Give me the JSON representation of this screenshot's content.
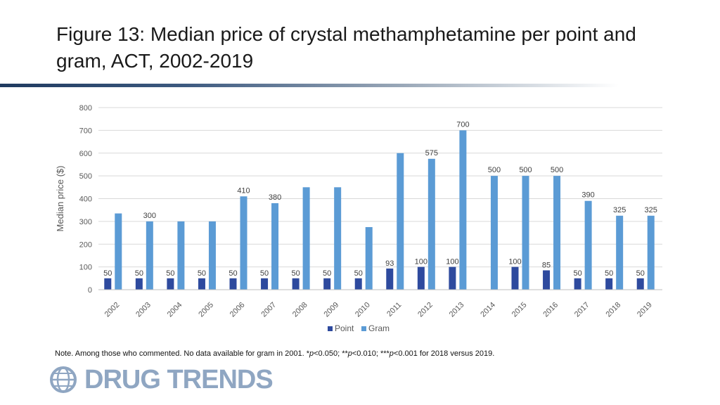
{
  "slide": {
    "title": "Figure 13: Median price of crystal methamphetamine per point and gram, ACT, 2002-2019",
    "note_prefix": "Note. Among those who commented. No data available for gram in 2001. *",
    "note_p1": "p",
    "note_mid1": "<0.050; **",
    "note_p2": "p",
    "note_mid2": "<0.010; ***",
    "note_p3": "p",
    "note_suffix": "<0.001 for 2018 versus 2019.",
    "logo_text": "DRUG TRENDS"
  },
  "chart_data": {
    "type": "bar",
    "title": "",
    "xlabel": "",
    "ylabel": "Median price ($)",
    "ylim": [
      0,
      800
    ],
    "yticks": [
      0,
      100,
      200,
      300,
      400,
      500,
      600,
      700,
      800
    ],
    "categories": [
      "2002",
      "2003",
      "2004",
      "2005",
      "2006",
      "2007",
      "2008",
      "2009",
      "2010",
      "2011",
      "2012",
      "2013",
      "2014",
      "2015",
      "2016",
      "2017",
      "2018",
      "2019"
    ],
    "series": [
      {
        "name": "Point",
        "color": "#2e4a9e",
        "values": [
          50,
          50,
          50,
          50,
          50,
          50,
          50,
          50,
          50,
          93,
          100,
          100,
          null,
          100,
          85,
          50,
          50,
          50
        ],
        "labels": [
          "50",
          "50",
          "50",
          "50",
          "50",
          "50",
          "50",
          "50",
          "50",
          "93",
          "100",
          "100",
          "",
          "100",
          "85",
          "50",
          "50",
          "50"
        ]
      },
      {
        "name": "Gram",
        "color": "#5b9bd5",
        "values": [
          335,
          300,
          300,
          300,
          410,
          380,
          450,
          450,
          275,
          600,
          575,
          700,
          500,
          500,
          500,
          390,
          325,
          325
        ],
        "labels": [
          "",
          "300",
          "",
          "",
          "410",
          "380",
          "",
          "",
          "",
          "",
          "575",
          "700",
          "500",
          "500",
          "500",
          "390",
          "325",
          "325"
        ]
      }
    ],
    "legend_position": "bottom",
    "grid": true
  }
}
